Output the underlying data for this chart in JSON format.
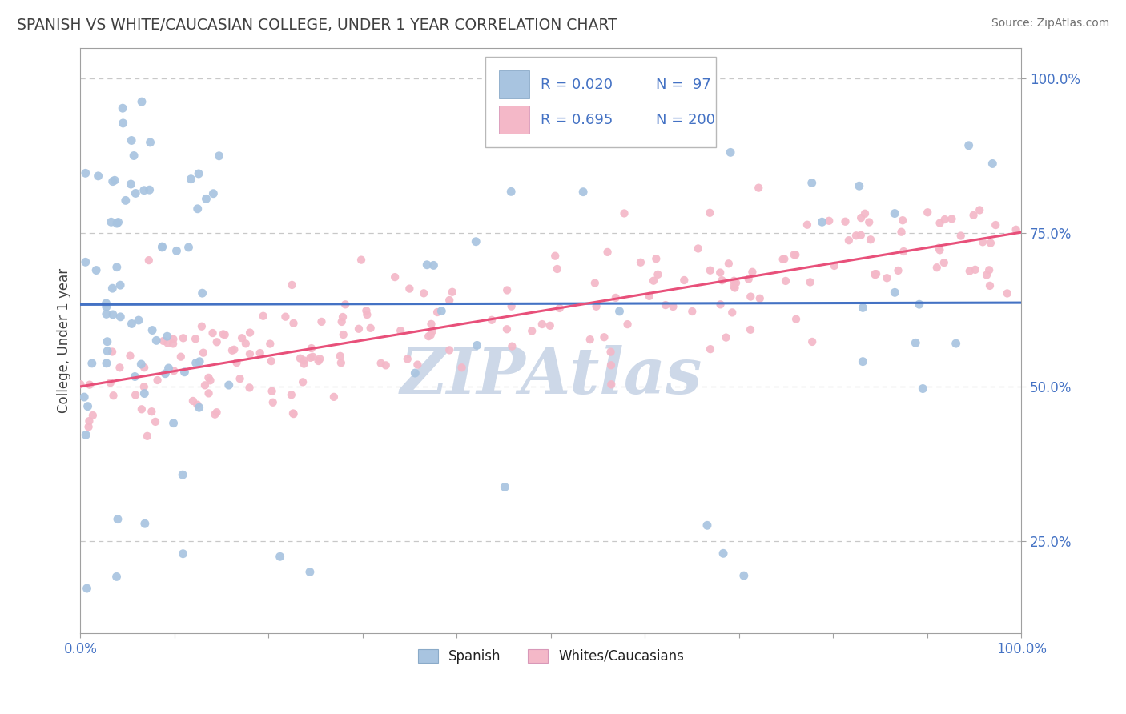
{
  "title": "SPANISH VS WHITE/CAUCASIAN COLLEGE, UNDER 1 YEAR CORRELATION CHART",
  "source": "Source: ZipAtlas.com",
  "ylabel": "College, Under 1 year",
  "xlim": [
    0.0,
    1.0
  ],
  "ylim": [
    0.1,
    1.05
  ],
  "legend_r1": "R = 0.020",
  "legend_n1": "N =  97",
  "legend_r2": "R = 0.695",
  "legend_n2": "N = 200",
  "spanish_color": "#a8c4e0",
  "caucasian_color": "#f4b8c8",
  "spanish_line_color": "#4472c4",
  "caucasian_line_color": "#e8507a",
  "legend_text_color": "#4472c4",
  "title_color": "#404040",
  "axis_color": "#a0a0a0",
  "grid_color": "#c8c8c8",
  "watermark_color": "#cdd8e8",
  "background_color": "#ffffff"
}
